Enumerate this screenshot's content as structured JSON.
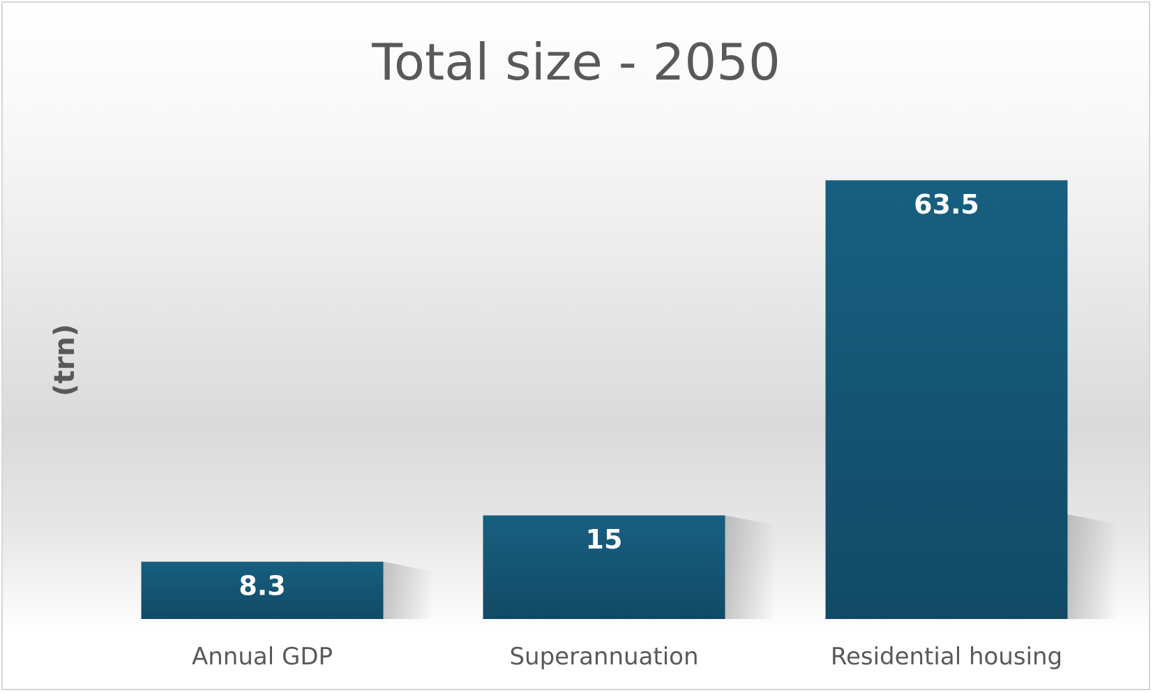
{
  "chart_data": {
    "type": "bar",
    "title": "Total size - 2050",
    "xlabel": "",
    "ylabel": "(trn)",
    "categories": [
      "Annual GDP",
      "Superannuation",
      "Residential housing"
    ],
    "values": [
      8.3,
      15,
      63.5
    ],
    "data_labels": [
      "8.3",
      "15",
      "63.5"
    ],
    "ylim": [
      0,
      70
    ],
    "grid": false,
    "legend": "none",
    "colors": {
      "bar_top": "#175f80",
      "bar_bottom": "#124a66",
      "label": "#ffffff",
      "text": "#595959"
    }
  }
}
